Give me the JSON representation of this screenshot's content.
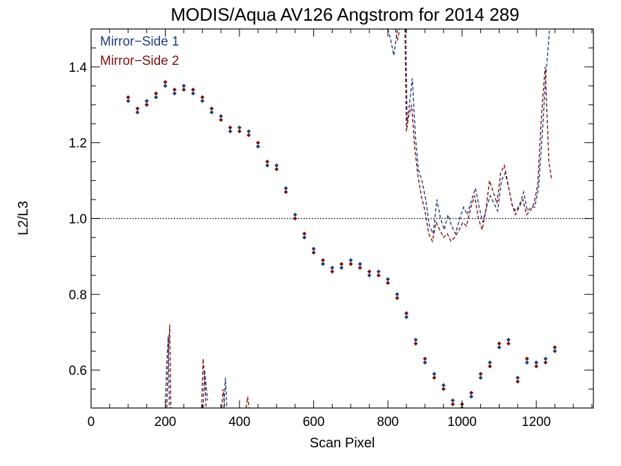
{
  "chart_data": {
    "type": "scatter",
    "title": "MODIS/Aqua AV126 Angstrom for 2014 289",
    "xlabel": "Scan Pixel",
    "ylabel": "L2/L3",
    "xlim": [
      0,
      1354
    ],
    "ylim": [
      0.5,
      1.5
    ],
    "xticks": [
      0,
      200,
      400,
      600,
      800,
      1000,
      1200
    ],
    "yticks": [
      0.6,
      0.8,
      1.0,
      1.2,
      1.4
    ],
    "xtick_labels": [
      "0",
      "200",
      "400",
      "600",
      "800",
      "1000",
      "1200"
    ],
    "ytick_labels": [
      "0.6",
      "0.8",
      "1.0",
      "1.2",
      "1.4"
    ],
    "reference_line": 1.0,
    "legend_position": "top-left",
    "colors": {
      "side1": "#1f3d7a",
      "side2": "#7a1010"
    },
    "series": [
      {
        "name": "Mirror−Side 1",
        "marker": "diamond",
        "x": [
          100,
          125,
          150,
          175,
          200,
          225,
          250,
          275,
          300,
          325,
          350,
          375,
          400,
          425,
          450,
          475,
          500,
          525,
          550,
          575,
          600,
          625,
          650,
          675,
          700,
          725,
          750,
          775,
          800,
          825,
          850,
          875,
          900,
          925,
          950,
          975,
          1000,
          1025,
          1050,
          1075,
          1100,
          1125,
          1150,
          1175,
          1200,
          1225,
          1250
        ],
        "y": [
          1.31,
          1.28,
          1.31,
          1.32,
          1.35,
          1.33,
          1.35,
          1.33,
          1.31,
          1.28,
          1.27,
          1.23,
          1.24,
          1.23,
          1.19,
          1.14,
          1.14,
          1.08,
          1.01,
          0.95,
          0.92,
          0.88,
          0.87,
          0.87,
          0.89,
          0.88,
          0.85,
          0.86,
          0.84,
          0.8,
          0.74,
          0.68,
          0.62,
          0.59,
          0.56,
          0.52,
          0.5,
          0.53,
          0.58,
          0.62,
          0.66,
          0.68,
          0.58,
          0.62,
          0.62,
          0.63,
          0.65
        ]
      },
      {
        "name": "Mirror−Side 2",
        "marker": "diamond",
        "x": [
          100,
          125,
          150,
          175,
          200,
          225,
          250,
          275,
          300,
          325,
          350,
          375,
          400,
          425,
          450,
          475,
          500,
          525,
          550,
          575,
          600,
          625,
          650,
          675,
          700,
          725,
          750,
          775,
          800,
          825,
          850,
          875,
          900,
          925,
          950,
          975,
          1000,
          1025,
          1050,
          1075,
          1100,
          1125,
          1150,
          1175,
          1200,
          1225,
          1250
        ],
        "y": [
          1.32,
          1.29,
          1.3,
          1.33,
          1.36,
          1.34,
          1.34,
          1.34,
          1.32,
          1.29,
          1.26,
          1.24,
          1.23,
          1.22,
          1.2,
          1.15,
          1.13,
          1.07,
          1.0,
          0.96,
          0.91,
          0.89,
          0.86,
          0.88,
          0.88,
          0.87,
          0.86,
          0.85,
          0.83,
          0.79,
          0.75,
          0.67,
          0.63,
          0.58,
          0.55,
          0.51,
          0.51,
          0.54,
          0.59,
          0.61,
          0.67,
          0.67,
          0.57,
          0.63,
          0.61,
          0.62,
          0.66
        ]
      },
      {
        "name": "",
        "style": "dashed",
        "segments": [
          [
            [
              800,
              1.5
            ],
            [
              808,
              1.47
            ],
            [
              816,
              1.43
            ],
            [
              826,
              1.5
            ]
          ],
          [
            [
              848,
              1.5
            ],
            [
              852,
              1.25
            ],
            [
              858,
              1.3
            ],
            [
              866,
              1.37
            ],
            [
              874,
              1.22
            ],
            [
              882,
              1.13
            ],
            [
              892,
              1.1
            ],
            [
              902,
              1.05
            ],
            [
              912,
              0.98
            ],
            [
              922,
              0.96
            ],
            [
              932,
              1.05
            ],
            [
              942,
              1.0
            ],
            [
              952,
              0.97
            ],
            [
              962,
              1.01
            ],
            [
              972,
              0.98
            ],
            [
              982,
              0.96
            ],
            [
              994,
              1.0
            ],
            [
              1004,
              1.03
            ],
            [
              1014,
              1.01
            ],
            [
              1026,
              1.05
            ],
            [
              1036,
              1.08
            ],
            [
              1046,
              1.03
            ],
            [
              1056,
              0.99
            ],
            [
              1066,
              1.03
            ],
            [
              1076,
              1.06
            ],
            [
              1086,
              1.04
            ],
            [
              1096,
              1.02
            ],
            [
              1106,
              1.1
            ],
            [
              1116,
              1.12
            ],
            [
              1126,
              1.08
            ],
            [
              1136,
              1.03
            ],
            [
              1146,
              1.02
            ],
            [
              1156,
              1.04
            ],
            [
              1166,
              1.07
            ],
            [
              1176,
              1.02
            ],
            [
              1186,
              1.03
            ],
            [
              1196,
              1.03
            ],
            [
              1206,
              1.08
            ],
            [
              1216,
              1.22
            ],
            [
              1226,
              1.38
            ],
            [
              1236,
              1.5
            ]
          ],
          [
            [
              200,
              0.5
            ],
            [
              204,
              0.62
            ],
            [
              208,
              0.69
            ],
            [
              211,
              0.5
            ]
          ],
          [
            [
              302,
              0.5
            ],
            [
              306,
              0.6
            ],
            [
              310,
              0.56
            ],
            [
              314,
              0.52
            ]
          ],
          [
            [
              358,
              0.5
            ],
            [
              362,
              0.58
            ],
            [
              366,
              0.5
            ]
          ]
        ]
      },
      {
        "name": "",
        "style": "dashed",
        "segments": [
          [
            [
              780,
              1.5
            ],
            [
              800,
              1.5
            ]
          ],
          [
            [
              820,
              1.5
            ],
            [
              826,
              1.47
            ],
            [
              832,
              1.5
            ]
          ],
          [
            [
              846,
              1.5
            ],
            [
              850,
              1.23
            ],
            [
              856,
              1.27
            ],
            [
              864,
              1.3
            ],
            [
              872,
              1.19
            ],
            [
              880,
              1.12
            ],
            [
              890,
              1.06
            ],
            [
              900,
              1.02
            ],
            [
              910,
              0.96
            ],
            [
              920,
              0.94
            ],
            [
              930,
              0.99
            ],
            [
              940,
              0.97
            ],
            [
              950,
              0.95
            ],
            [
              960,
              0.96
            ],
            [
              970,
              0.94
            ],
            [
              980,
              0.95
            ],
            [
              992,
              0.97
            ],
            [
              1002,
              0.99
            ],
            [
              1012,
              0.98
            ],
            [
              1024,
              1.03
            ],
            [
              1034,
              1.06
            ],
            [
              1044,
              1.0
            ],
            [
              1054,
              0.97
            ],
            [
              1064,
              1.02
            ],
            [
              1074,
              1.1
            ],
            [
              1084,
              1.07
            ],
            [
              1094,
              1.04
            ],
            [
              1104,
              1.12
            ],
            [
              1114,
              1.14
            ],
            [
              1124,
              1.09
            ],
            [
              1134,
              1.04
            ],
            [
              1144,
              1.01
            ],
            [
              1154,
              1.03
            ],
            [
              1164,
              1.05
            ],
            [
              1174,
              1.01
            ],
            [
              1184,
              1.02
            ],
            [
              1194,
              1.04
            ],
            [
              1204,
              1.09
            ],
            [
              1214,
              1.27
            ],
            [
              1224,
              1.4
            ],
            [
              1234,
              1.15
            ],
            [
              1242,
              1.1
            ]
          ],
          [
            [
              204,
              0.5
            ],
            [
              208,
              0.63
            ],
            [
              212,
              0.72
            ],
            [
              215,
              0.5
            ]
          ],
          [
            [
              298,
              0.5
            ],
            [
              302,
              0.63
            ],
            [
              306,
              0.58
            ],
            [
              310,
              0.5
            ]
          ],
          [
            [
              352,
              0.5
            ],
            [
              356,
              0.55
            ],
            [
              360,
              0.5
            ]
          ],
          [
            [
              418,
              0.5
            ],
            [
              422,
              0.53
            ],
            [
              426,
              0.5
            ]
          ]
        ]
      }
    ]
  }
}
